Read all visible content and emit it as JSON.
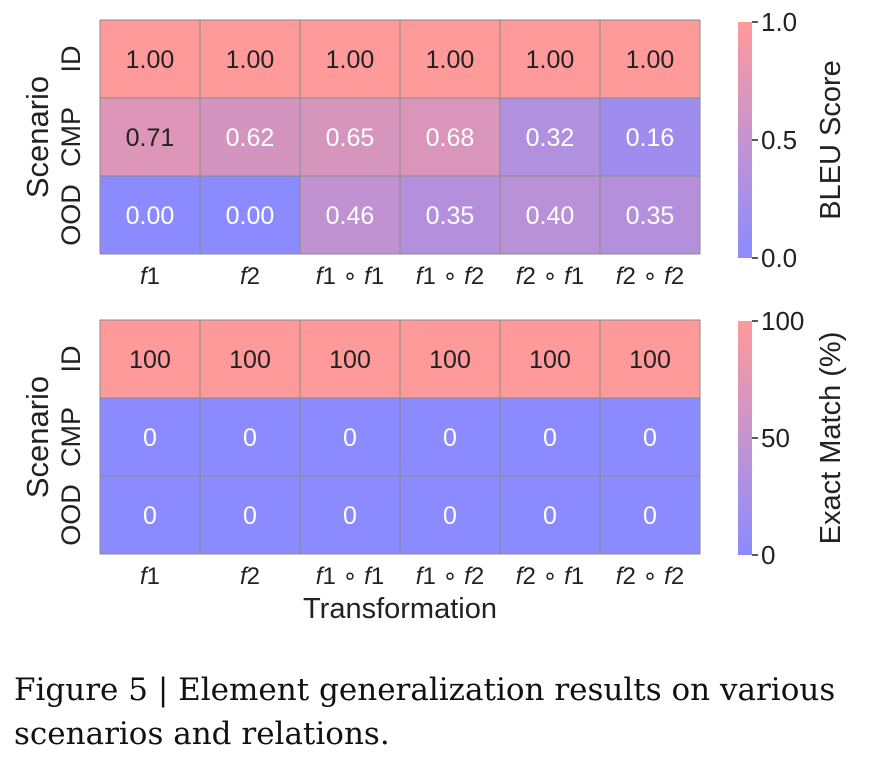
{
  "chart_data": [
    {
      "type": "heatmap",
      "rows": [
        "ID",
        "CMP",
        "OOD"
      ],
      "columns": [
        "f1",
        "f2",
        "f1 ∘ f1",
        "f1 ∘ f2",
        "f2 ∘ f1",
        "f2 ∘ f2"
      ],
      "values": [
        [
          1.0,
          1.0,
          1.0,
          1.0,
          1.0,
          1.0
        ],
        [
          0.71,
          0.62,
          0.65,
          0.68,
          0.32,
          0.16
        ],
        [
          0.0,
          0.0,
          0.46,
          0.35,
          0.4,
          0.35
        ]
      ],
      "decimals": 2,
      "ylabel": "Scenario",
      "xlabel": "",
      "colorbar": {
        "label": "BLEU Score",
        "ticks": [
          0.0,
          0.5,
          1.0
        ],
        "tick_labels": [
          "0.0",
          "0.5",
          "1.0"
        ],
        "range": [
          0,
          1
        ]
      },
      "colormap": [
        "#8b8bff",
        "#ff9a9a"
      ]
    },
    {
      "type": "heatmap",
      "rows": [
        "ID",
        "CMP",
        "OOD"
      ],
      "columns": [
        "f1",
        "f2",
        "f1 ∘ f1",
        "f1 ∘ f2",
        "f2 ∘ f1",
        "f2 ∘ f2"
      ],
      "values": [
        [
          100,
          100,
          100,
          100,
          100,
          100
        ],
        [
          0,
          0,
          0,
          0,
          0,
          0
        ],
        [
          0,
          0,
          0,
          0,
          0,
          0
        ]
      ],
      "decimals": 0,
      "ylabel": "Scenario",
      "xlabel": "Transformation",
      "colorbar": {
        "label": "Exact Match (%)",
        "ticks": [
          0,
          50,
          100
        ],
        "tick_labels": [
          "0",
          "50",
          "100"
        ],
        "range": [
          0,
          100
        ]
      },
      "colormap": [
        "#8b8bff",
        "#ff9a9a"
      ]
    }
  ],
  "caption": "Figure 5 | Element generalization results on various scenarios and relations."
}
